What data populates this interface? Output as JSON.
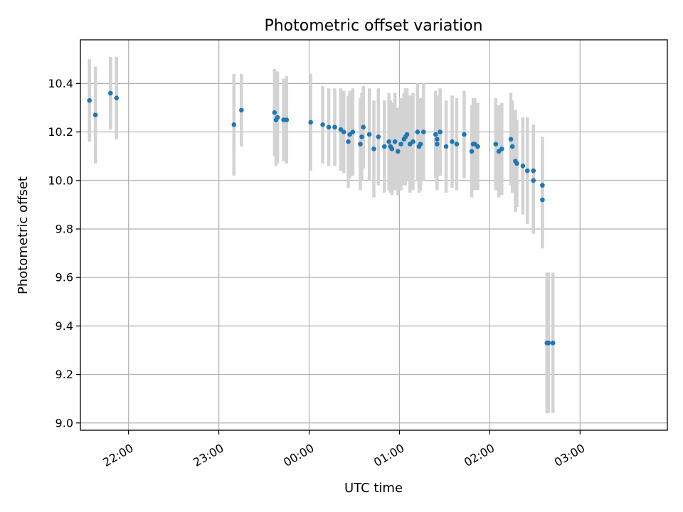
{
  "chart_data": {
    "type": "scatter",
    "title": "Photometric offset variation",
    "xlabel": "UTC time",
    "ylabel": "Photometric offset",
    "x_ticks": [
      "22:00",
      "23:00",
      "00:00",
      "01:00",
      "02:00",
      "03:00"
    ],
    "y_ticks": [
      "9.0",
      "9.2",
      "9.4",
      "9.6",
      "9.8",
      "10.0",
      "10.2",
      "10.4"
    ],
    "grid": true,
    "colors": {
      "point": "#1f77b4",
      "errorbar": "#d3d3d3",
      "grid": "#b0b0b0"
    },
    "series": [
      {
        "x": [
          "21:34",
          "21:38",
          "21:48",
          "21:52",
          "23:10",
          "23:15",
          "23:37",
          "23:38",
          "23:39",
          "23:43",
          "23:45",
          "00:01",
          "00:09",
          "00:13",
          "00:17",
          "00:21",
          "00:23",
          "00:26",
          "00:27",
          "00:29",
          "00:34",
          "00:35",
          "00:36",
          "00:40",
          "00:43",
          "00:46",
          "00:50",
          "00:53",
          "00:54",
          "00:55",
          "00:57",
          "00:59",
          "01:01",
          "01:03",
          "01:04",
          "01:05",
          "01:07",
          "01:09",
          "01:12",
          "01:13",
          "01:14",
          "01:16",
          "01:24",
          "01:25",
          "01:25",
          "01:27",
          "01:31",
          "01:35",
          "01:38",
          "01:43",
          "01:48",
          "01:49",
          "01:50",
          "01:52",
          "02:04",
          "02:06",
          "02:08",
          "02:14",
          "02:15",
          "02:17",
          "02:18",
          "02:22",
          "02:25",
          "02:29",
          "02:29",
          "02:35",
          "02:35",
          "02:38",
          "02:39",
          "02:42"
        ],
        "y": [
          10.33,
          10.27,
          10.36,
          10.34,
          10.23,
          10.29,
          10.28,
          10.25,
          10.26,
          10.25,
          10.25,
          10.24,
          10.23,
          10.22,
          10.22,
          10.21,
          10.2,
          10.16,
          10.19,
          10.2,
          10.15,
          10.18,
          10.22,
          10.19,
          10.13,
          10.18,
          10.14,
          10.16,
          10.14,
          10.13,
          10.16,
          10.12,
          10.15,
          10.17,
          10.18,
          10.19,
          10.15,
          10.16,
          10.2,
          10.14,
          10.15,
          10.2,
          10.19,
          10.17,
          10.15,
          10.2,
          10.14,
          10.16,
          10.15,
          10.19,
          10.12,
          10.15,
          10.15,
          10.14,
          10.15,
          10.12,
          10.13,
          10.17,
          10.14,
          10.08,
          10.07,
          10.06,
          10.04,
          10.0,
          10.04,
          9.98,
          9.92,
          9.33,
          9.33,
          9.33
        ],
        "yerr": [
          0.17,
          0.2,
          0.15,
          0.17,
          0.21,
          0.15,
          0.18,
          0.19,
          0.19,
          0.17,
          0.18,
          0.2,
          0.16,
          0.16,
          0.16,
          0.17,
          0.17,
          0.19,
          0.18,
          0.18,
          0.19,
          0.18,
          0.17,
          0.19,
          0.2,
          0.2,
          0.19,
          0.2,
          0.19,
          0.19,
          0.2,
          0.18,
          0.19,
          0.19,
          0.2,
          0.19,
          0.2,
          0.2,
          0.2,
          0.19,
          0.19,
          0.2,
          0.18,
          0.18,
          0.19,
          0.18,
          0.19,
          0.19,
          0.19,
          0.18,
          0.19,
          0.19,
          0.19,
          0.18,
          0.19,
          0.19,
          0.19,
          0.19,
          0.19,
          0.21,
          0.18,
          0.2,
          0.22,
          0.22,
          0.19,
          0.2,
          0.2,
          0.29,
          0.29,
          0.29
        ]
      }
    ],
    "ylim": [
      8.97,
      10.58
    ],
    "xlim": [
      "21:28",
      "03:58"
    ]
  }
}
